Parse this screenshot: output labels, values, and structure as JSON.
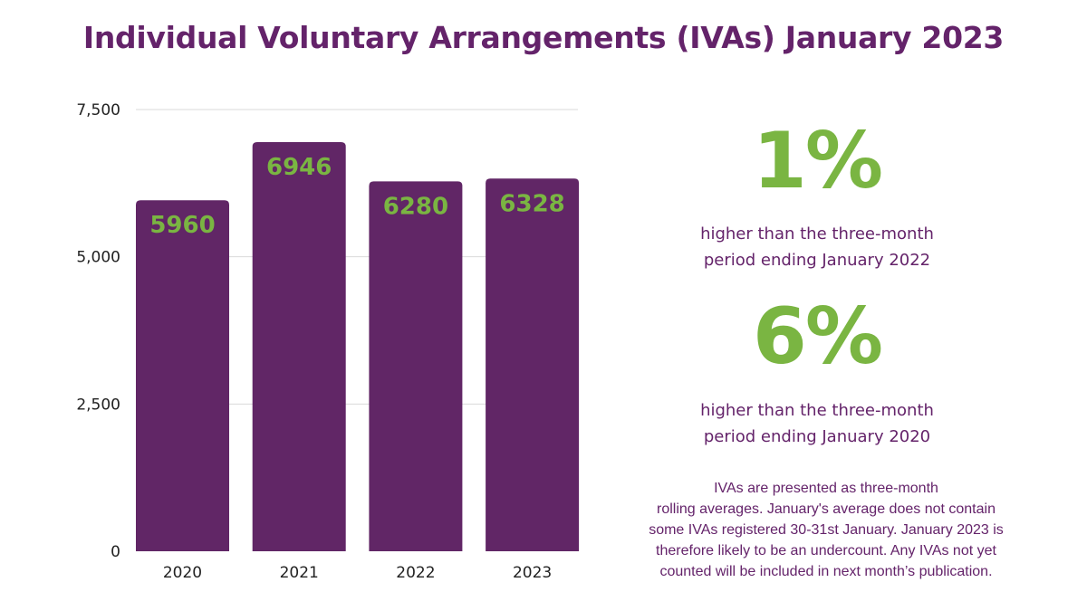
{
  "title": "Individual Voluntary Arrangements (IVAs) January 2023",
  "colors": {
    "bar": "#612666",
    "value_label": "#7ab542",
    "title": "#64236a",
    "grid": "#d9d9d9"
  },
  "chart_data": {
    "type": "bar",
    "title": "Individual Voluntary Arrangements (IVAs) January 2023",
    "categories": [
      "2020",
      "2021",
      "2022",
      "2023"
    ],
    "values": [
      5960,
      6946,
      6280,
      6328
    ],
    "data_labels": [
      "5960",
      "6946",
      "6280",
      "6328"
    ],
    "ylim": [
      0,
      7500
    ],
    "yticks": [
      0,
      2500,
      5000,
      7500
    ],
    "ytick_labels": [
      "0",
      "2,500",
      "5,000",
      "7,500"
    ],
    "xlabel": "",
    "ylabel": "",
    "grid": true,
    "legend": "none"
  },
  "stats": [
    {
      "value": "1%",
      "desc": [
        "higher than the three-month",
        "period ending January 2022"
      ]
    },
    {
      "value": "6%",
      "desc": [
        "higher than the three-month",
        "period ending January 2020"
      ]
    }
  ],
  "footnote": [
    "IVAs are presented as three-month",
    "rolling averages. January's average does not contain",
    "some IVAs registered 30-31st January. January 2023 is",
    "therefore likely to be an undercount. Any IVAs not yet",
    "counted will be included in next month’s publication."
  ]
}
